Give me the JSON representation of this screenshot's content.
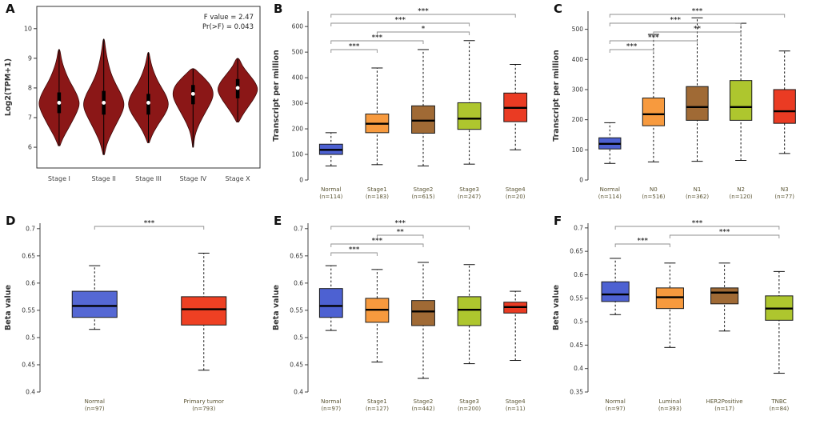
{
  "chart_data": [
    {
      "type": "violin",
      "panel": "A",
      "ylabel": "Log2(TPM+1)",
      "ylim": [
        5.3,
        10.75
      ],
      "yticks": [
        6,
        7,
        8,
        9,
        10
      ],
      "categories": [
        "Stage I",
        "Stage II",
        "Stage III",
        "Stage IV",
        "Stage X"
      ],
      "annotation": [
        "F value = 2.47",
        "Pr(>F) = 0.043"
      ],
      "fill": "#8b1717",
      "stroke": "#3f0a0a",
      "violins": [
        {
          "median": 7.5,
          "iqr": [
            7.15,
            7.85
          ],
          "profile": [
            [
              6.05,
              0.04
            ],
            [
              6.3,
              0.18
            ],
            [
              6.6,
              0.42
            ],
            [
              6.9,
              0.66
            ],
            [
              7.2,
              0.88
            ],
            [
              7.45,
              1.0
            ],
            [
              7.7,
              0.92
            ],
            [
              8.0,
              0.7
            ],
            [
              8.3,
              0.45
            ],
            [
              8.7,
              0.22
            ],
            [
              9.0,
              0.1
            ],
            [
              9.3,
              0.04
            ]
          ]
        },
        {
          "median": 7.5,
          "iqr": [
            7.1,
            7.9
          ],
          "profile": [
            [
              5.75,
              0.03
            ],
            [
              6.1,
              0.14
            ],
            [
              6.5,
              0.4
            ],
            [
              6.9,
              0.7
            ],
            [
              7.25,
              0.95
            ],
            [
              7.5,
              1.0
            ],
            [
              7.8,
              0.85
            ],
            [
              8.1,
              0.6
            ],
            [
              8.5,
              0.34
            ],
            [
              9.0,
              0.16
            ],
            [
              9.4,
              0.07
            ],
            [
              9.65,
              0.03
            ]
          ]
        },
        {
          "median": 7.5,
          "iqr": [
            7.1,
            7.8
          ],
          "profile": [
            [
              6.15,
              0.04
            ],
            [
              6.45,
              0.2
            ],
            [
              6.8,
              0.5
            ],
            [
              7.1,
              0.8
            ],
            [
              7.4,
              1.0
            ],
            [
              7.7,
              0.9
            ],
            [
              8.0,
              0.65
            ],
            [
              8.3,
              0.4
            ],
            [
              8.7,
              0.18
            ],
            [
              9.0,
              0.08
            ],
            [
              9.2,
              0.03
            ]
          ]
        },
        {
          "median": 7.8,
          "iqr": [
            7.45,
            8.1
          ],
          "profile": [
            [
              6.0,
              0.02
            ],
            [
              6.4,
              0.08
            ],
            [
              6.8,
              0.3
            ],
            [
              7.2,
              0.62
            ],
            [
              7.55,
              0.9
            ],
            [
              7.8,
              1.0
            ],
            [
              8.05,
              0.9
            ],
            [
              8.3,
              0.6
            ],
            [
              8.5,
              0.3
            ],
            [
              8.65,
              0.08
            ]
          ]
        },
        {
          "median": 8.0,
          "iqr": [
            7.65,
            8.3
          ],
          "profile": [
            [
              6.85,
              0.05
            ],
            [
              7.1,
              0.25
            ],
            [
              7.4,
              0.55
            ],
            [
              7.7,
              0.85
            ],
            [
              7.95,
              1.0
            ],
            [
              8.2,
              0.85
            ],
            [
              8.5,
              0.5
            ],
            [
              8.75,
              0.22
            ],
            [
              9.0,
              0.07
            ]
          ]
        }
      ]
    },
    {
      "type": "box",
      "panel": "B",
      "ylabel": "Transcript per million",
      "ylim": [
        0,
        660
      ],
      "yticks": [
        0,
        100,
        200,
        300,
        400,
        500,
        600
      ],
      "groups": [
        {
          "label": "Normal",
          "n": "(n=114)",
          "color": "#4d61d2",
          "lo": 55,
          "q1": 100,
          "med": 118,
          "q3": 140,
          "hi": 185
        },
        {
          "label": "Stage1",
          "n": "(n=183)",
          "color": "#f79a3e",
          "lo": 60,
          "q1": 185,
          "med": 220,
          "q3": 258,
          "hi": 438
        },
        {
          "label": "Stage2",
          "n": "(n=615)",
          "color": "#a06a35",
          "lo": 55,
          "q1": 183,
          "med": 232,
          "q3": 290,
          "hi": 510
        },
        {
          "label": "Stage3",
          "n": "(n=247)",
          "color": "#aec62e",
          "lo": 62,
          "q1": 198,
          "med": 240,
          "q3": 302,
          "hi": 545
        },
        {
          "label": "Stage4",
          "n": "(n=20)",
          "color": "#ea3b23",
          "lo": 118,
          "q1": 228,
          "med": 282,
          "q3": 340,
          "hi": 452
        }
      ],
      "sig": [
        {
          "a": 0,
          "b": 1,
          "label": "***",
          "level": 0
        },
        {
          "a": 0,
          "b": 2,
          "label": "***",
          "level": 1
        },
        {
          "a": 1,
          "b": 3,
          "label": "*",
          "level": 2
        },
        {
          "a": 0,
          "b": 3,
          "label": "***",
          "level": 3
        },
        {
          "a": 0,
          "b": 4,
          "label": "***",
          "level": 4
        }
      ]
    },
    {
      "type": "box",
      "panel": "C",
      "ylabel": "Transcript per million",
      "ylim": [
        0,
        560
      ],
      "yticks": [
        0,
        100,
        200,
        300,
        400,
        500
      ],
      "groups": [
        {
          "label": "Normal",
          "n": "(n=114)",
          "color": "#4d61d2",
          "lo": 55,
          "q1": 103,
          "med": 120,
          "q3": 140,
          "hi": 190
        },
        {
          "label": "N0",
          "n": "(n=516)",
          "color": "#f79a3e",
          "lo": 60,
          "q1": 180,
          "med": 218,
          "q3": 272,
          "hi": 483
        },
        {
          "label": "N1",
          "n": "(n=362)",
          "color": "#a06a35",
          "lo": 62,
          "q1": 198,
          "med": 242,
          "q3": 310,
          "hi": 538
        },
        {
          "label": "N2",
          "n": "(n=120)",
          "color": "#aec62e",
          "lo": 65,
          "q1": 198,
          "med": 242,
          "q3": 330,
          "hi": 520
        },
        {
          "label": "N3",
          "n": "(n=77)",
          "color": "#ea3b23",
          "lo": 88,
          "q1": 188,
          "med": 228,
          "q3": 300,
          "hi": 428
        }
      ],
      "sig": [
        {
          "a": 0,
          "b": 1,
          "label": "***",
          "level": 0
        },
        {
          "a": 0,
          "b": 2,
          "label": "***",
          "level": 1
        },
        {
          "a": 1,
          "b": 3,
          "label": "**",
          "level": 2
        },
        {
          "a": 0,
          "b": 3,
          "label": "***",
          "level": 3
        },
        {
          "a": 0,
          "b": 4,
          "label": "***",
          "level": 4
        }
      ]
    },
    {
      "type": "box",
      "panel": "D",
      "ylabel": "Beta value",
      "ylim": [
        0.4,
        0.71
      ],
      "yticks": [
        0.4,
        0.45,
        0.5,
        0.55,
        0.6,
        0.65,
        0.7
      ],
      "groups": [
        {
          "label": "Normal",
          "n": "(n=97)",
          "color": "#5568d4",
          "lo": 0.515,
          "q1": 0.537,
          "med": 0.558,
          "q3": 0.585,
          "hi": 0.632
        },
        {
          "label": "Primary tumor",
          "n": "(n=793)",
          "color": "#ee4023",
          "lo": 0.44,
          "q1": 0.523,
          "med": 0.552,
          "q3": 0.575,
          "hi": 0.655
        }
      ],
      "sig": [
        {
          "a": 0,
          "b": 1,
          "label": "***",
          "level": 0
        }
      ]
    },
    {
      "type": "box",
      "panel": "E",
      "ylabel": "Beta value",
      "ylim": [
        0.4,
        0.71
      ],
      "yticks": [
        0.4,
        0.45,
        0.5,
        0.55,
        0.6,
        0.65,
        0.7
      ],
      "groups": [
        {
          "label": "Normal",
          "n": "(n=97)",
          "color": "#4d61d2",
          "lo": 0.513,
          "q1": 0.537,
          "med": 0.558,
          "q3": 0.59,
          "hi": 0.632
        },
        {
          "label": "Stage1",
          "n": "(n=127)",
          "color": "#f79a3e",
          "lo": 0.455,
          "q1": 0.528,
          "med": 0.551,
          "q3": 0.572,
          "hi": 0.625
        },
        {
          "label": "Stage2",
          "n": "(n=442)",
          "color": "#a06a35",
          "lo": 0.425,
          "q1": 0.522,
          "med": 0.548,
          "q3": 0.568,
          "hi": 0.638
        },
        {
          "label": "Stage3",
          "n": "(n=200)",
          "color": "#aec62e",
          "lo": 0.452,
          "q1": 0.522,
          "med": 0.551,
          "q3": 0.575,
          "hi": 0.634
        },
        {
          "label": "Stage4",
          "n": "(n=11)",
          "color": "#ea3b23",
          "lo": 0.458,
          "q1": 0.545,
          "med": 0.556,
          "q3": 0.565,
          "hi": 0.585
        }
      ],
      "sig": [
        {
          "a": 0,
          "b": 1,
          "label": "***",
          "level": 0
        },
        {
          "a": 0,
          "b": 2,
          "label": "***",
          "level": 1
        },
        {
          "a": 1,
          "b": 2,
          "label": "**",
          "level": 2
        },
        {
          "a": 0,
          "b": 3,
          "label": "***",
          "level": 3
        }
      ]
    },
    {
      "type": "box",
      "panel": "F",
      "ylabel": "Beta value",
      "ylim": [
        0.35,
        0.71
      ],
      "yticks": [
        0.35,
        0.4,
        0.45,
        0.5,
        0.55,
        0.6,
        0.65,
        0.7
      ],
      "groups": [
        {
          "label": "Normal",
          "n": "(n=97)",
          "color": "#4d61d2",
          "lo": 0.515,
          "q1": 0.543,
          "med": 0.558,
          "q3": 0.585,
          "hi": 0.635
        },
        {
          "label": "Luminal",
          "n": "(n=393)",
          "color": "#f79a3e",
          "lo": 0.445,
          "q1": 0.528,
          "med": 0.552,
          "q3": 0.572,
          "hi": 0.625
        },
        {
          "label": "HER2Positive",
          "n": "(n=17)",
          "color": "#a06a35",
          "lo": 0.48,
          "q1": 0.538,
          "med": 0.562,
          "q3": 0.572,
          "hi": 0.625
        },
        {
          "label": "TNBC",
          "n": "(n=84)",
          "color": "#aec62e",
          "lo": 0.39,
          "q1": 0.503,
          "med": 0.528,
          "q3": 0.555,
          "hi": 0.607
        }
      ],
      "sig": [
        {
          "a": 0,
          "b": 1,
          "label": "***",
          "level": 0
        },
        {
          "a": 1,
          "b": 3,
          "label": "***",
          "level": 1
        },
        {
          "a": 0,
          "b": 3,
          "label": "***",
          "level": 2
        }
      ]
    }
  ],
  "colors": {
    "normal": "#4d61d2",
    "orange": "#f79a3e",
    "brown": "#a06a35",
    "yellow_green": "#aec62e",
    "red": "#ea3b23",
    "violin_fill": "#8b1717"
  }
}
